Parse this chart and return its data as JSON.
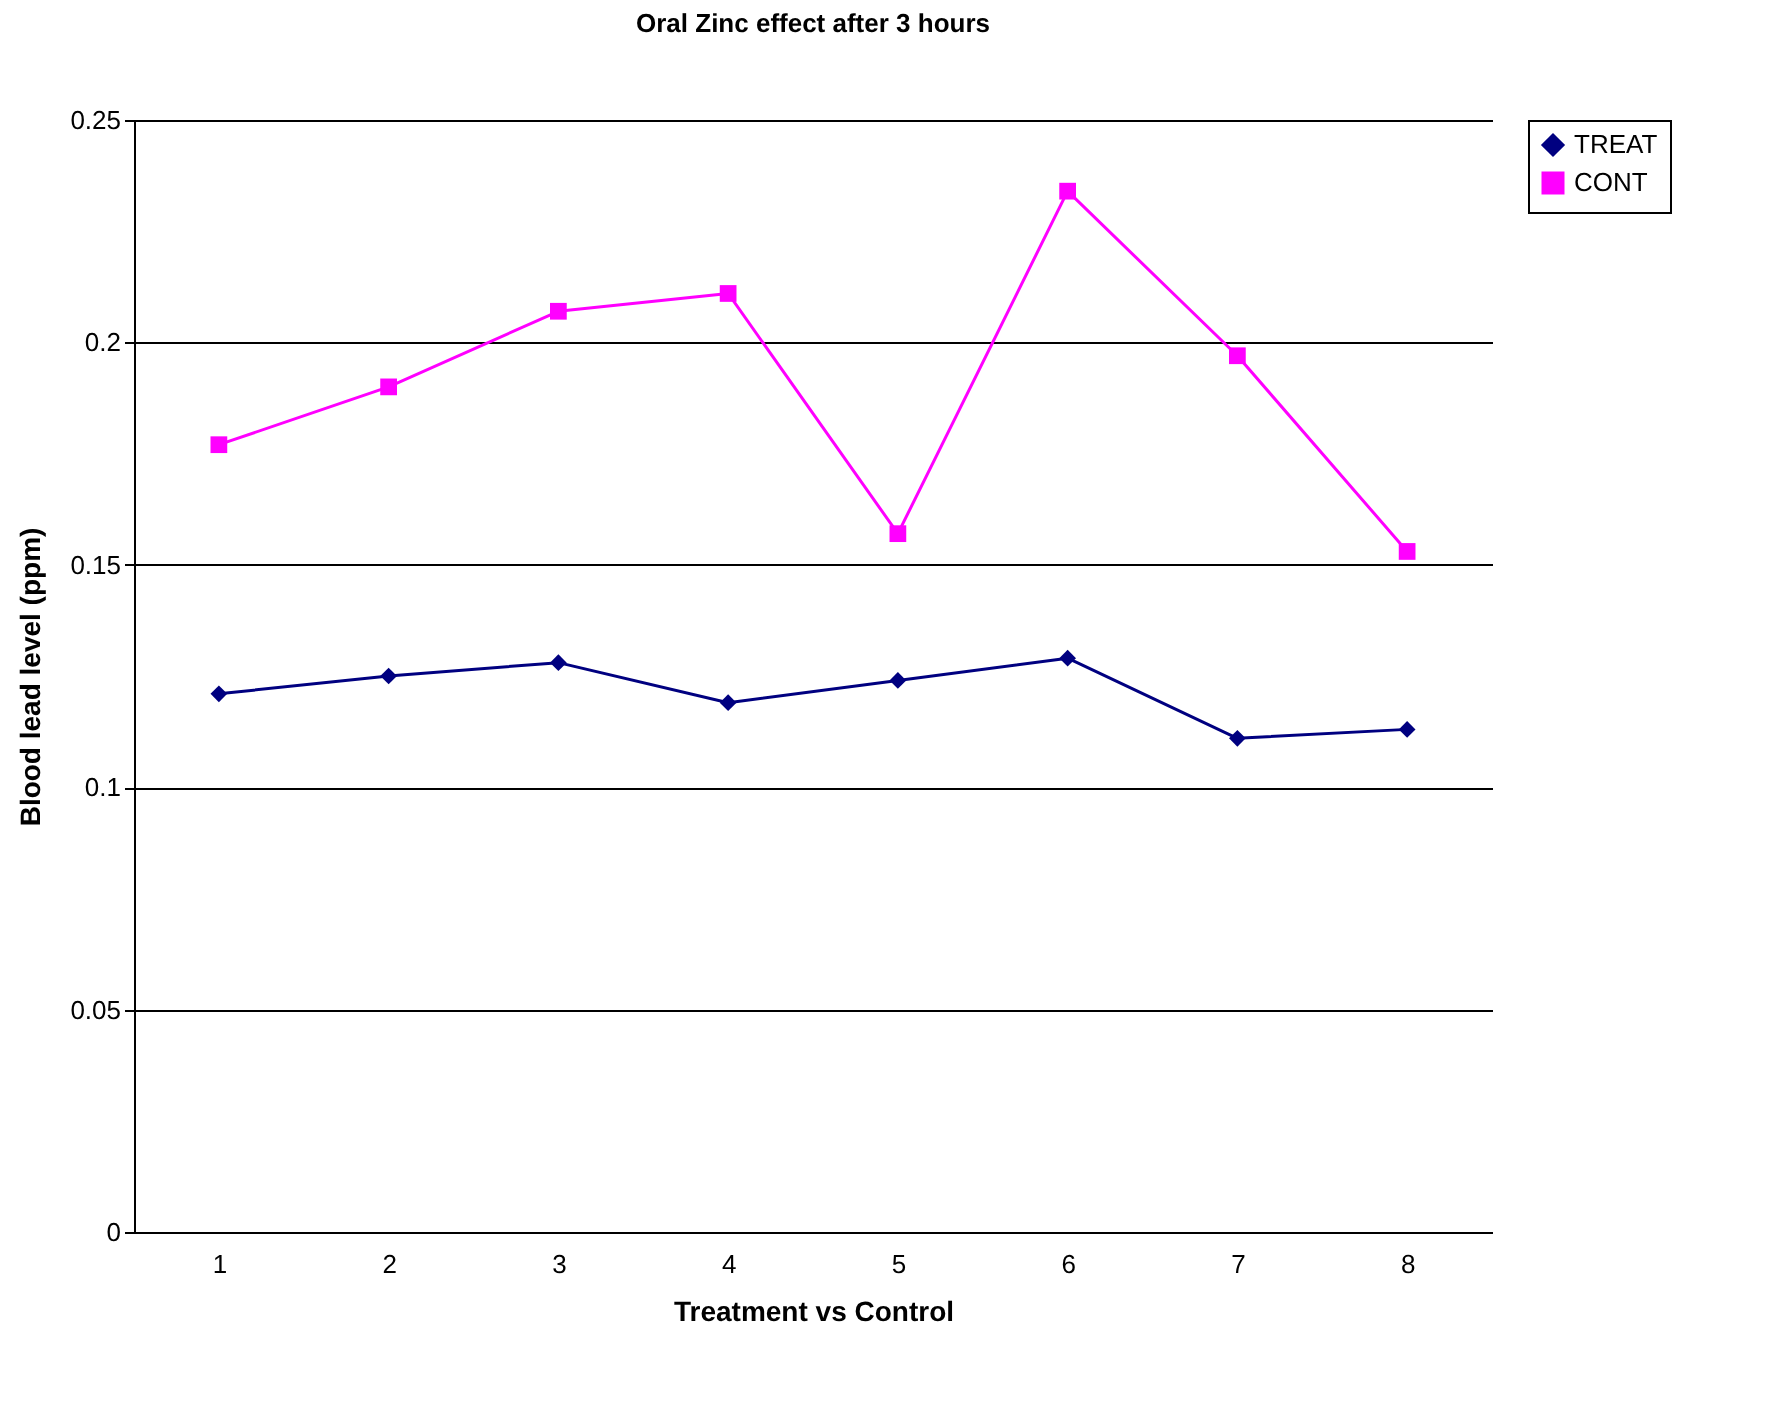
{
  "chart_data": {
    "type": "line",
    "title": "Oral Zinc effect after 3 hours",
    "xlabel": "Treatment vs Control",
    "ylabel": "Blood lead level (ppm)",
    "categories": [
      "1",
      "2",
      "3",
      "4",
      "5",
      "6",
      "7",
      "8"
    ],
    "series": [
      {
        "name": "TREAT",
        "color": "#000080",
        "marker": "diamond",
        "values": [
          0.121,
          0.125,
          0.128,
          0.119,
          0.124,
          0.129,
          0.111,
          0.113
        ]
      },
      {
        "name": "CONT",
        "color": "#ff00ff",
        "marker": "square",
        "values": [
          0.177,
          0.19,
          0.207,
          0.211,
          0.157,
          0.234,
          0.197,
          0.153
        ]
      }
    ],
    "ylim": [
      0,
      0.25
    ],
    "yticks": [
      0,
      0.05,
      0.1,
      0.15,
      0.2,
      0.25
    ],
    "grid": "y",
    "legend": "right",
    "line_style": "solid"
  }
}
